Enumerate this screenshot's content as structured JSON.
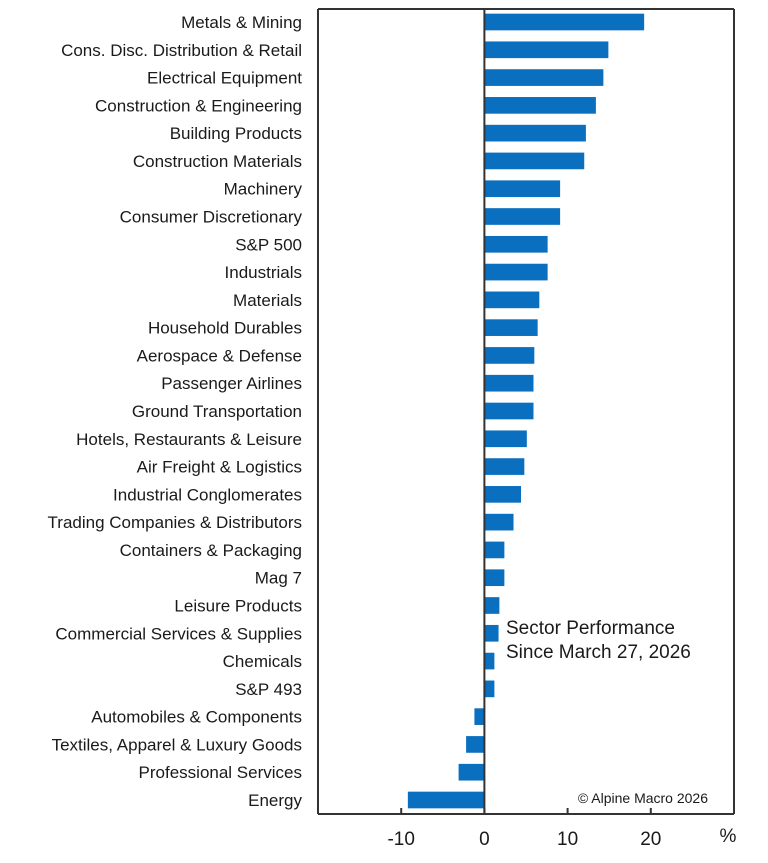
{
  "chart_data": {
    "type": "bar",
    "orientation": "horizontal",
    "title": "Sector Performance Since March 27, 2026",
    "annotation_lines": [
      "Sector Performance",
      "Since March 27, 2026"
    ],
    "credit": "© Alpine Macro 2026",
    "xlabel": "%",
    "ylabel": "",
    "xlim": [
      -20,
      30
    ],
    "xticks": [
      -10,
      0,
      10,
      20
    ],
    "xtick_labels": [
      "-10",
      "0",
      "10",
      "20"
    ],
    "grid": false,
    "legend": "none",
    "bar_color": "#0b6fc0",
    "categories": [
      "Metals & Mining",
      "Cons. Disc. Distribution & Retail",
      "Electrical Equipment",
      "Construction & Engineering",
      "Building Products",
      "Construction Materials",
      "Machinery",
      "Consumer Discretionary",
      "S&P 500",
      "Industrials",
      "Materials",
      "Household Durables",
      "Aerospace & Defense",
      "Passenger Airlines",
      "Ground Transportation",
      "Hotels, Restaurants & Leisure",
      "Air Freight & Logistics",
      "Industrial Conglomerates",
      "Trading Companies & Distributors",
      "Containers & Packaging",
      "Mag 7",
      "Leisure Products",
      "Commercial Services & Supplies",
      "Chemicals",
      "S&P 493",
      "Automobiles & Components",
      "Textiles, Apparel & Luxury Goods",
      "Professional Services",
      "Energy"
    ],
    "values": [
      19.2,
      14.9,
      14.3,
      13.4,
      12.2,
      12.0,
      9.1,
      9.1,
      7.6,
      7.6,
      6.6,
      6.4,
      6.0,
      5.9,
      5.9,
      5.1,
      4.8,
      4.4,
      3.5,
      2.4,
      2.4,
      1.8,
      1.7,
      1.2,
      1.2,
      -1.2,
      -2.2,
      -3.1,
      -9.2
    ]
  }
}
